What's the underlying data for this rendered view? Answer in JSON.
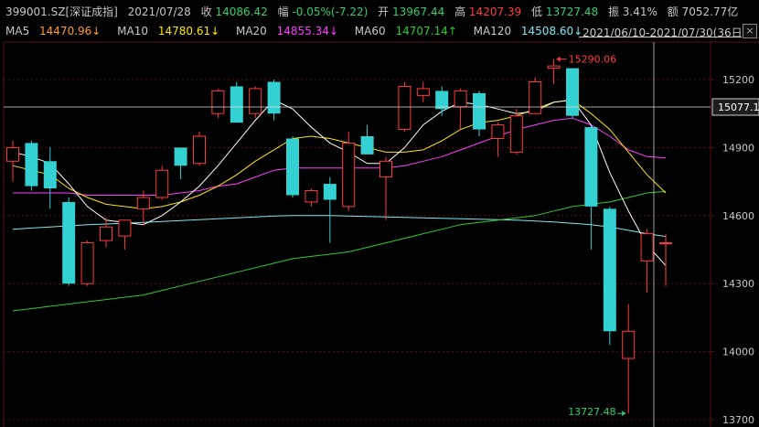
{
  "header": {
    "code": "399001.SZ[深证成指]",
    "date": "2021/07/28",
    "close_label": "收",
    "close_value": "14086.42",
    "change_label": "幅",
    "change_value": "-0.05%(-7.22)",
    "open_label": "开",
    "open_value": "13967.44",
    "high_label": "高",
    "high_value": "14207.39",
    "low_label": "低",
    "low_value": "13727.48",
    "amp_label": "振",
    "amp_value": "3.41%",
    "amount_label": "额",
    "amount_value": "7052.77亿"
  },
  "ma_legend": [
    {
      "label": "MA5",
      "value": "14470.96↓",
      "color": "#ff9a2e"
    },
    {
      "label": "MA10",
      "value": "14780.61↓",
      "color": "#ffe600"
    },
    {
      "label": "MA20",
      "value": "14855.34↓",
      "color": "#ff3cff"
    },
    {
      "label": "MA60",
      "value": "14707.14↑",
      "color": "#2ecc2e"
    },
    {
      "label": "MA120",
      "value": "14508.60↓",
      "color": "#7ee8f0"
    }
  ],
  "range_text": "2021/06/10-2021/07/30(36日)",
  "close_button": "×",
  "crosshair_value": "15077.1",
  "colors": {
    "up": "#ff3b3b",
    "down": "#33d1d1",
    "grid": "#5a1010",
    "axis_text": "#c8c8c8",
    "ma5": "#ffffff",
    "ma10": "#ffe600",
    "ma20": "#ff3cff",
    "ma60": "#2ecc2e",
    "ma120": "#7ee8f0"
  },
  "chart_data": {
    "type": "candlestick",
    "y_ticks": [
      15200,
      14900,
      14600,
      14300,
      14000,
      13700
    ],
    "ylim": [
      13700,
      15350
    ],
    "annotations": {
      "max": {
        "label": "15290.06",
        "value": 15290.06,
        "index": 29
      },
      "min": {
        "label": "13727.48",
        "value": 13727.48,
        "index": 33
      }
    },
    "candles": [
      {
        "o": 14840,
        "h": 14930,
        "l": 14750,
        "c": 14900
      },
      {
        "o": 14920,
        "h": 14930,
        "l": 14710,
        "c": 14730
      },
      {
        "o": 14840,
        "h": 14900,
        "l": 14630,
        "c": 14720
      },
      {
        "o": 14660,
        "h": 14680,
        "l": 14290,
        "c": 14300
      },
      {
        "o": 14300,
        "h": 14490,
        "l": 14290,
        "c": 14480
      },
      {
        "o": 14490,
        "h": 14590,
        "l": 14460,
        "c": 14550
      },
      {
        "o": 14510,
        "h": 14570,
        "l": 14450,
        "c": 14580
      },
      {
        "o": 14630,
        "h": 14710,
        "l": 14560,
        "c": 14680
      },
      {
        "o": 14680,
        "h": 14820,
        "l": 14670,
        "c": 14800
      },
      {
        "o": 14900,
        "h": 14900,
        "l": 14760,
        "c": 14820
      },
      {
        "o": 14830,
        "h": 14970,
        "l": 14820,
        "c": 14950
      },
      {
        "o": 15050,
        "h": 15160,
        "l": 15030,
        "c": 15150
      },
      {
        "o": 15170,
        "h": 15190,
        "l": 15010,
        "c": 15010
      },
      {
        "o": 15050,
        "h": 15170,
        "l": 15030,
        "c": 15160
      },
      {
        "o": 15190,
        "h": 15200,
        "l": 15020,
        "c": 15050
      },
      {
        "o": 14940,
        "h": 14950,
        "l": 14680,
        "c": 14690
      },
      {
        "o": 14660,
        "h": 14720,
        "l": 14640,
        "c": 14710
      },
      {
        "o": 14740,
        "h": 14770,
        "l": 14480,
        "c": 14670
      },
      {
        "o": 14640,
        "h": 14970,
        "l": 14620,
        "c": 14920
      },
      {
        "o": 14950,
        "h": 15000,
        "l": 14870,
        "c": 14870
      },
      {
        "o": 14770,
        "h": 14860,
        "l": 14580,
        "c": 14840
      },
      {
        "o": 14980,
        "h": 15190,
        "l": 14970,
        "c": 15170
      },
      {
        "o": 15130,
        "h": 15190,
        "l": 15100,
        "c": 15160
      },
      {
        "o": 15150,
        "h": 15170,
        "l": 15040,
        "c": 15070
      },
      {
        "o": 15080,
        "h": 15160,
        "l": 14980,
        "c": 15150
      },
      {
        "o": 15140,
        "h": 15150,
        "l": 14950,
        "c": 14980
      },
      {
        "o": 14940,
        "h": 15010,
        "l": 14860,
        "c": 15000
      },
      {
        "o": 14880,
        "h": 15070,
        "l": 14870,
        "c": 15040
      },
      {
        "o": 15050,
        "h": 15210,
        "l": 15050,
        "c": 15190
      },
      {
        "o": 15250,
        "h": 15290,
        "l": 15180,
        "c": 15260
      },
      {
        "o": 15250,
        "h": 15250,
        "l": 15030,
        "c": 15040
      },
      {
        "o": 14990,
        "h": 15000,
        "l": 14450,
        "c": 14640
      },
      {
        "o": 14630,
        "h": 14640,
        "l": 14030,
        "c": 14090
      },
      {
        "o": 13970,
        "h": 14210,
        "l": 13727,
        "c": 14090
      },
      {
        "o": 14400,
        "h": 14540,
        "l": 14260,
        "c": 14520
      },
      {
        "o": 14480,
        "h": 14520,
        "l": 14290,
        "c": 14480
      }
    ],
    "ma5": [
      14880,
      14860,
      14830,
      14740,
      14640,
      14580,
      14570,
      14560,
      14600,
      14660,
      14730,
      14820,
      14920,
      15020,
      15110,
      15070,
      14990,
      14920,
      14880,
      14830,
      14830,
      14900,
      15000,
      15060,
      15100,
      15090,
      15070,
      15050,
      15060,
      15100,
      15110,
      15000,
      14790,
      14620,
      14470,
      14380
    ],
    "ma10": [
      14820,
      14800,
      14780,
      14720,
      14680,
      14650,
      14640,
      14630,
      14640,
      14660,
      14690,
      14730,
      14780,
      14840,
      14890,
      14940,
      14950,
      14940,
      14920,
      14900,
      14880,
      14880,
      14890,
      14930,
      14980,
      15010,
      15020,
      15040,
      15070,
      15100,
      15110,
      15050,
      14980,
      14880,
      14780,
      14700
    ],
    "ma20": [
      14700,
      14700,
      14700,
      14700,
      14690,
      14690,
      14690,
      14690,
      14690,
      14700,
      14710,
      14730,
      14740,
      14770,
      14800,
      14810,
      14810,
      14810,
      14810,
      14810,
      14810,
      14820,
      14840,
      14860,
      14890,
      14920,
      14950,
      14980,
      15000,
      15020,
      15030,
      15000,
      14950,
      14890,
      14860,
      14855
    ],
    "ma60": [
      14180,
      14190,
      14200,
      14210,
      14220,
      14230,
      14240,
      14250,
      14270,
      14290,
      14310,
      14330,
      14350,
      14370,
      14390,
      14410,
      14420,
      14430,
      14440,
      14460,
      14480,
      14500,
      14520,
      14540,
      14560,
      14570,
      14580,
      14590,
      14600,
      14620,
      14640,
      14650,
      14660,
      14680,
      14700,
      14707
    ],
    "ma120": [
      14540,
      14545,
      14550,
      14555,
      14560,
      14563,
      14566,
      14570,
      14574,
      14578,
      14582,
      14586,
      14590,
      14594,
      14598,
      14600,
      14600,
      14600,
      14598,
      14596,
      14594,
      14592,
      14590,
      14588,
      14586,
      14584,
      14582,
      14580,
      14576,
      14572,
      14566,
      14560,
      14550,
      14535,
      14520,
      14508
    ]
  }
}
